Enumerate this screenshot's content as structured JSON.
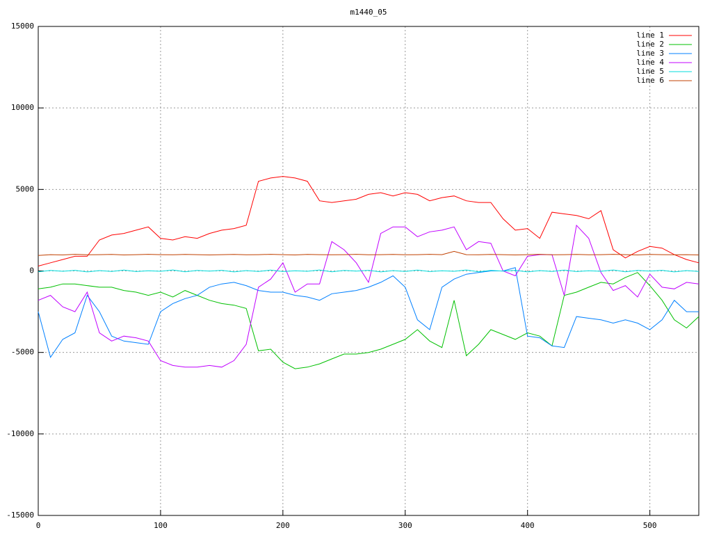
{
  "chart_data": {
    "type": "line",
    "title": "m1440_05",
    "x": [
      0,
      10,
      20,
      30,
      40,
      50,
      60,
      70,
      80,
      90,
      100,
      110,
      120,
      130,
      140,
      150,
      160,
      170,
      180,
      190,
      200,
      210,
      220,
      230,
      240,
      250,
      260,
      270,
      280,
      290,
      300,
      310,
      320,
      330,
      340,
      350,
      360,
      370,
      380,
      390,
      400,
      410,
      420,
      430,
      440,
      450,
      460,
      470,
      480,
      490,
      500,
      510,
      520,
      530,
      540
    ],
    "xlim": [
      0,
      540
    ],
    "xticks": [
      0,
      100,
      200,
      300,
      400,
      500
    ],
    "ylim": [
      -15000,
      15000
    ],
    "yticks": [
      -15000,
      -10000,
      -5000,
      0,
      5000,
      10000,
      15000
    ],
    "grid": true,
    "legend": "top-right",
    "series": [
      {
        "name": "line 1",
        "color": "#ff0000",
        "values": [
          300,
          500,
          700,
          900,
          900,
          1900,
          2200,
          2300,
          2500,
          2700,
          2000,
          1900,
          2100,
          2000,
          2300,
          2500,
          2600,
          2800,
          5500,
          5700,
          5800,
          5700,
          5500,
          4300,
          4200,
          4300,
          4400,
          4700,
          4800,
          4600,
          4800,
          4700,
          4300,
          4500,
          4600,
          4300,
          4200,
          4200,
          3200,
          2500,
          2600,
          2000,
          3600,
          3500,
          3400,
          3200,
          3700,
          1300,
          800,
          1200,
          1500,
          1400,
          1000,
          700,
          500
        ]
      },
      {
        "name": "line 2",
        "color": "#00c000",
        "values": [
          -1100,
          -1000,
          -800,
          -800,
          -900,
          -1000,
          -1000,
          -1200,
          -1300,
          -1500,
          -1300,
          -1600,
          -1200,
          -1500,
          -1800,
          -2000,
          -2100,
          -2300,
          -4900,
          -4800,
          -5600,
          -6000,
          -5900,
          -5700,
          -5400,
          -5100,
          -5100,
          -5000,
          -4800,
          -4500,
          -4200,
          -3600,
          -4300,
          -4700,
          -1800,
          -5200,
          -4500,
          -3600,
          -3900,
          -4200,
          -3800,
          -4000,
          -4600,
          -1500,
          -1300,
          -1000,
          -700,
          -800,
          -400,
          -100,
          -900,
          -1800,
          -3000,
          -3500,
          -2800
        ]
      },
      {
        "name": "line 3",
        "color": "#0080ff",
        "values": [
          -2500,
          -5300,
          -4200,
          -3800,
          -1500,
          -2500,
          -4000,
          -4300,
          -4400,
          -4500,
          -2500,
          -2000,
          -1700,
          -1500,
          -1000,
          -800,
          -700,
          -900,
          -1200,
          -1300,
          -1300,
          -1500,
          -1600,
          -1800,
          -1400,
          -1300,
          -1200,
          -1000,
          -700,
          -300,
          -1000,
          -3000,
          -3600,
          -1000,
          -500,
          -200,
          -100,
          0,
          0,
          200,
          -4000,
          -4100,
          -4600,
          -4700,
          -2800,
          -2900,
          -3000,
          -3200,
          -3000,
          -3200,
          -3600,
          -3000,
          -1800,
          -2500,
          -2500
        ]
      },
      {
        "name": "line 4",
        "color": "#c000ff",
        "values": [
          -1800,
          -1500,
          -2200,
          -2500,
          -1300,
          -3800,
          -4300,
          -4000,
          -4100,
          -4300,
          -5500,
          -5800,
          -5900,
          -5900,
          -5800,
          -5900,
          -5500,
          -4500,
          -1000,
          -500,
          500,
          -1300,
          -800,
          -800,
          1800,
          1300,
          500,
          -700,
          2300,
          2700,
          2700,
          2100,
          2400,
          2500,
          2700,
          1300,
          1800,
          1700,
          0,
          -300,
          900,
          1000,
          1000,
          -1500,
          2800,
          2000,
          -100,
          -1200,
          -900,
          -1600,
          -200,
          -1000,
          -1100,
          -700,
          -800
        ]
      },
      {
        "name": "line 5",
        "color": "#00dddd",
        "values": [
          -50,
          30,
          -20,
          40,
          -60,
          20,
          -30,
          50,
          -40,
          10,
          -20,
          60,
          -50,
          30,
          -10,
          40,
          -60,
          20,
          -30,
          50,
          -40,
          10,
          -20,
          60,
          -50,
          30,
          -10,
          40,
          -60,
          20,
          -30,
          50,
          -40,
          10,
          -20,
          60,
          -50,
          30,
          -10,
          40,
          -60,
          20,
          -30,
          50,
          -40,
          10,
          -20,
          60,
          -50,
          30,
          -10,
          40,
          -60,
          20,
          -30
        ]
      },
      {
        "name": "line 6",
        "color": "#c04000",
        "values": [
          950,
          1000,
          980,
          1020,
          990,
          1000,
          1010,
          980,
          1000,
          1020,
          1000,
          990,
          1010,
          1000,
          980,
          1000,
          1010,
          990,
          1000,
          1020,
          1000,
          980,
          1010,
          1000,
          990,
          1000,
          1020,
          990,
          1000,
          1010,
          990,
          1000,
          1020,
          1000,
          1200,
          1000,
          990,
          1010,
          1000,
          980,
          1000,
          1020,
          990,
          1000,
          1010,
          990,
          1000,
          1020,
          1000,
          980,
          1010,
          1000,
          990,
          1000,
          980
        ]
      }
    ]
  }
}
